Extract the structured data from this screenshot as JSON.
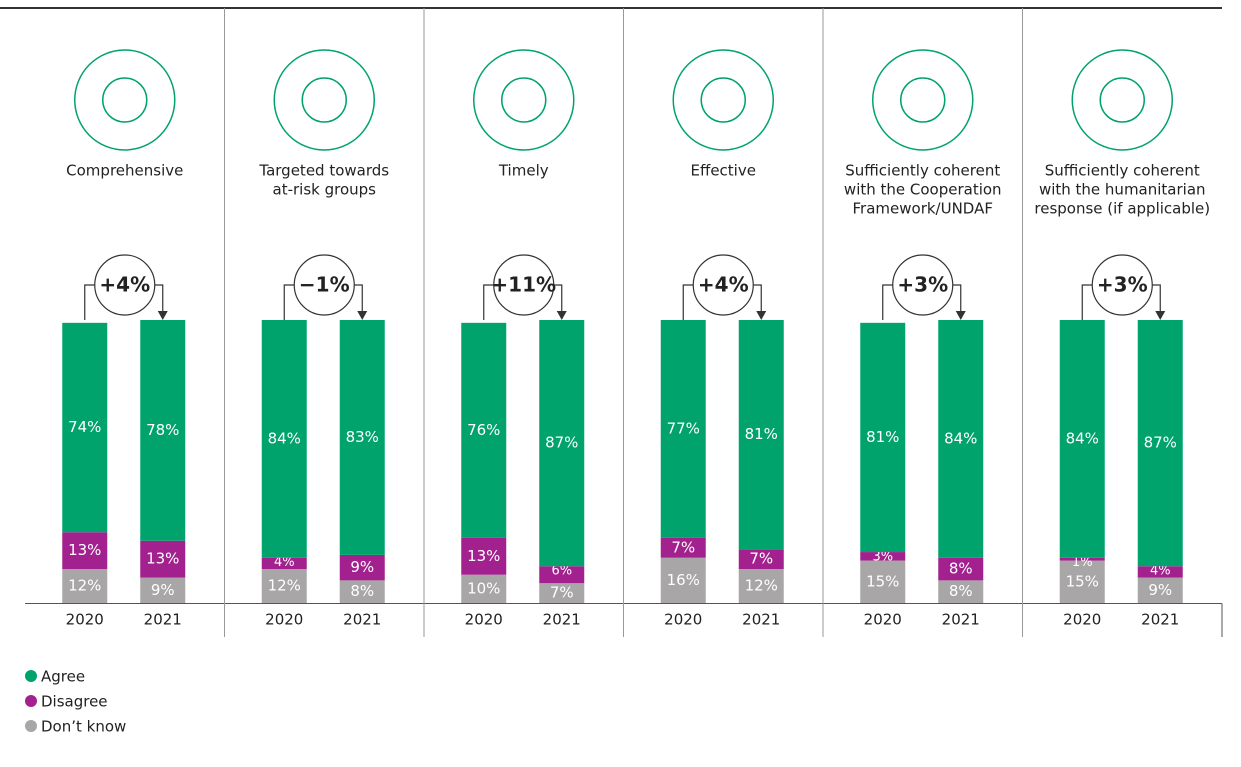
{
  "chart_data": {
    "type": "bar",
    "stacked": true,
    "ylim": [
      0,
      100
    ],
    "series": [
      {
        "name": "Agree",
        "color": "#00a36c"
      },
      {
        "name": "Disagree",
        "color": "#a3218e"
      },
      {
        "name": "Don’t know",
        "color": "#a8a6a6"
      }
    ],
    "panels": [
      {
        "title": [
          "Comprehensive"
        ],
        "change": "+4%",
        "categories": [
          "2020",
          "2021"
        ],
        "values": [
          [
            74,
            78
          ],
          [
            13,
            13
          ],
          [
            12,
            9
          ]
        ],
        "value_labels": [
          [
            "74%",
            "78%"
          ],
          [
            "13%",
            "13%"
          ],
          [
            "12%",
            "9%"
          ]
        ]
      },
      {
        "title": [
          "Targeted towards",
          "at-risk groups"
        ],
        "change": "−1%",
        "categories": [
          "2020",
          "2021"
        ],
        "values": [
          [
            84,
            83
          ],
          [
            4,
            9
          ],
          [
            12,
            8
          ]
        ],
        "value_labels": [
          [
            "84%",
            "83%"
          ],
          [
            "4%",
            "9%"
          ],
          [
            "12%",
            "8%"
          ]
        ]
      },
      {
        "title": [
          "Timely"
        ],
        "change": "+11%",
        "categories": [
          "2020",
          "2021"
        ],
        "values": [
          [
            76,
            87
          ],
          [
            13,
            6
          ],
          [
            10,
            7
          ]
        ],
        "value_labels": [
          [
            "76%",
            "87%"
          ],
          [
            "13%",
            "6%"
          ],
          [
            "10%",
            "7%"
          ]
        ]
      },
      {
        "title": [
          "Effective"
        ],
        "change": "+4%",
        "categories": [
          "2020",
          "2021"
        ],
        "values": [
          [
            77,
            81
          ],
          [
            7,
            7
          ],
          [
            16,
            12
          ]
        ],
        "value_labels": [
          [
            "77%",
            "81%"
          ],
          [
            "7%",
            "7%"
          ],
          [
            "16%",
            "12%"
          ]
        ]
      },
      {
        "title": [
          "Sufficiently coherent",
          "with the Cooperation",
          "Framework/UNDAF"
        ],
        "change": "+3%",
        "categories": [
          "2020",
          "2021"
        ],
        "values": [
          [
            81,
            84
          ],
          [
            3,
            8
          ],
          [
            15,
            8
          ]
        ],
        "value_labels": [
          [
            "81%",
            "84%"
          ],
          [
            "3%",
            "8%"
          ],
          [
            "15%",
            "8%"
          ]
        ]
      },
      {
        "title": [
          "Sufficiently coherent",
          "with the humanitarian",
          "response (if applicable)"
        ],
        "change": "+3%",
        "categories": [
          "2020",
          "2021"
        ],
        "values": [
          [
            84,
            87
          ],
          [
            1,
            4
          ],
          [
            15,
            9
          ]
        ],
        "value_labels": [
          [
            "84%",
            "87%"
          ],
          [
            "1%",
            "4%"
          ],
          [
            "15%",
            "9%"
          ]
        ]
      }
    ]
  }
}
